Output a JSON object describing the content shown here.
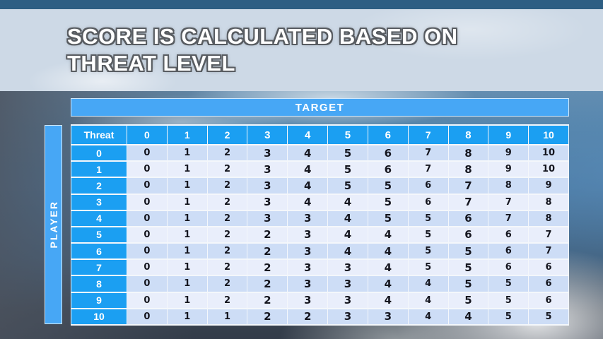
{
  "title": "SCORE IS CALCULATED BASED ON\nTHREAT LEVEL",
  "target_label": "TARGET",
  "player_label": "PLAYER",
  "table": {
    "corner_label": "Threat",
    "columns": [
      "0",
      "1",
      "2",
      "3",
      "4",
      "5",
      "6",
      "7",
      "8",
      "9",
      "10"
    ],
    "rows": [
      {
        "label": "0",
        "values": [
          "0",
          "1",
          "2",
          "3",
          "4",
          "5",
          "6",
          "7",
          "8",
          "9",
          "10"
        ]
      },
      {
        "label": "1",
        "values": [
          "0",
          "1",
          "2",
          "3",
          "4",
          "5",
          "6",
          "7",
          "8",
          "9",
          "10"
        ]
      },
      {
        "label": "2",
        "values": [
          "0",
          "1",
          "2",
          "3",
          "4",
          "5",
          "5",
          "6",
          "7",
          "8",
          "9"
        ]
      },
      {
        "label": "3",
        "values": [
          "0",
          "1",
          "2",
          "3",
          "4",
          "4",
          "5",
          "6",
          "7",
          "7",
          "8"
        ]
      },
      {
        "label": "4",
        "values": [
          "0",
          "1",
          "2",
          "3",
          "3",
          "4",
          "5",
          "5",
          "6",
          "7",
          "8"
        ]
      },
      {
        "label": "5",
        "values": [
          "0",
          "1",
          "2",
          "2",
          "3",
          "4",
          "4",
          "5",
          "6",
          "6",
          "7"
        ]
      },
      {
        "label": "6",
        "values": [
          "0",
          "1",
          "2",
          "2",
          "3",
          "4",
          "4",
          "5",
          "5",
          "6",
          "7"
        ]
      },
      {
        "label": "7",
        "values": [
          "0",
          "1",
          "2",
          "2",
          "3",
          "3",
          "4",
          "5",
          "5",
          "6",
          "6"
        ]
      },
      {
        "label": "8",
        "values": [
          "0",
          "1",
          "2",
          "2",
          "3",
          "3",
          "4",
          "4",
          "5",
          "5",
          "6"
        ]
      },
      {
        "label": "9",
        "values": [
          "0",
          "1",
          "2",
          "2",
          "3",
          "3",
          "4",
          "4",
          "5",
          "5",
          "6"
        ]
      },
      {
        "label": "10",
        "values": [
          "0",
          "1",
          "1",
          "2",
          "2",
          "3",
          "3",
          "4",
          "4",
          "5",
          "5"
        ]
      }
    ]
  },
  "colors": {
    "top_strip": "#2d5e83",
    "banner": "#cdd9e6",
    "header_blue": "#1b9ff2",
    "bar_blue": "#47a7f5",
    "row_dark": "#cdddf6",
    "row_light": "#e9eefb",
    "cell_text": "#15161f",
    "grid_white": "#f4f7fb"
  }
}
